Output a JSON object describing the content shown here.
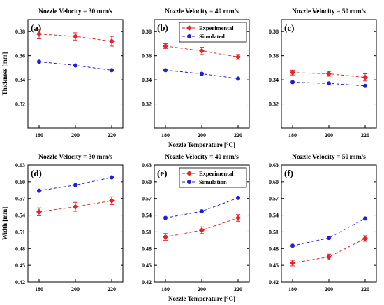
{
  "figure": {
    "row_xlabel": "Nozzle Temperature  [°C]"
  },
  "colors": {
    "experimental": "#e8222a",
    "simulated": "#1f1fd6",
    "axis": "#000000"
  },
  "chart_data": [
    {
      "type": "line",
      "panel": "(a)",
      "title": "Nozzle Velocity = 30 mm/s",
      "xlabel": "",
      "ylabel": "Thickness  [mm]",
      "x": [
        180,
        200,
        220
      ],
      "xticks": [
        "180",
        "200",
        "220"
      ],
      "ylim": [
        0.3,
        0.39
      ],
      "yticks": [
        "0.32",
        "0.34",
        "0.36",
        "0.38"
      ],
      "legend": null,
      "series": [
        {
          "key": "experimental",
          "marker": "diamond",
          "values": [
            0.378,
            0.376,
            0.372
          ],
          "errors": [
            0.004,
            0.003,
            0.004
          ]
        },
        {
          "key": "simulated",
          "marker": "circle",
          "values": [
            0.355,
            0.352,
            0.348
          ],
          "errors": null
        }
      ]
    },
    {
      "type": "line",
      "panel": "(b)",
      "title": "Nozzle Velocity = 40 mm/s",
      "xlabel": "Nozzle Temperature  [°C]",
      "ylabel": "",
      "x": [
        180,
        200,
        220
      ],
      "xticks": [
        "180",
        "200",
        "220"
      ],
      "ylim": [
        0.3,
        0.39
      ],
      "yticks": [
        "0.32",
        "0.34",
        "0.36",
        "0.38"
      ],
      "legend": "top-right",
      "series": [
        {
          "key": "experimental",
          "name": "Experimental",
          "marker": "diamond",
          "values": [
            0.368,
            0.364,
            0.359
          ],
          "errors": [
            0.002,
            0.003,
            0.002
          ]
        },
        {
          "key": "simulated",
          "name": "Simulated",
          "marker": "circle",
          "values": [
            0.348,
            0.345,
            0.341
          ],
          "errors": null
        }
      ]
    },
    {
      "type": "line",
      "panel": "(c)",
      "title": "Nozzle Velocity = 50 mm/s",
      "xlabel": "",
      "ylabel": "",
      "x": [
        180,
        200,
        220
      ],
      "xticks": [
        "180",
        "200",
        "220"
      ],
      "ylim": [
        0.3,
        0.39
      ],
      "yticks": [
        "0.32",
        "0.34",
        "0.36",
        "0.38"
      ],
      "legend": null,
      "series": [
        {
          "key": "experimental",
          "marker": "diamond",
          "values": [
            0.346,
            0.345,
            0.342
          ],
          "errors": [
            0.002,
            0.002,
            0.003
          ]
        },
        {
          "key": "simulated",
          "marker": "circle",
          "values": [
            0.338,
            0.337,
            0.335
          ],
          "errors": null
        }
      ]
    },
    {
      "type": "line",
      "panel": "(d)",
      "title": "Nozzle Velocity = 30 mm/s",
      "xlabel": "",
      "ylabel": "Width  [mm]",
      "x": [
        180,
        200,
        220
      ],
      "xticks": [
        "180",
        "200",
        "220"
      ],
      "ylim": [
        0.42,
        0.63
      ],
      "yticks": [
        "0.42",
        "0.45",
        "0.48",
        "0.51",
        "0.54",
        "0.57",
        "0.60",
        "0.63"
      ],
      "legend": null,
      "series": [
        {
          "key": "experimental",
          "marker": "diamond",
          "values": [
            0.546,
            0.555,
            0.566
          ],
          "errors": [
            0.007,
            0.008,
            0.007
          ]
        },
        {
          "key": "simulated",
          "marker": "circle",
          "values": [
            0.584,
            0.594,
            0.608
          ],
          "errors": null
        }
      ]
    },
    {
      "type": "line",
      "panel": "(e)",
      "title": "Nozzle Velocity = 40 mm/s",
      "xlabel": "Nozzle Temperature  [°C]",
      "ylabel": "",
      "x": [
        180,
        200,
        220
      ],
      "xticks": [
        "180",
        "200",
        "220"
      ],
      "ylim": [
        0.42,
        0.63
      ],
      "yticks": [
        "0.42",
        "0.45",
        "0.48",
        "0.51",
        "0.54",
        "0.57",
        "0.60",
        "0.63"
      ],
      "legend": "top-right",
      "series": [
        {
          "key": "experimental",
          "name": "Experimental",
          "marker": "diamond",
          "values": [
            0.501,
            0.513,
            0.535
          ],
          "errors": [
            0.006,
            0.006,
            0.006
          ]
        },
        {
          "key": "simulated",
          "name": "Simulation",
          "marker": "circle",
          "values": [
            0.535,
            0.547,
            0.571
          ],
          "errors": null
        }
      ]
    },
    {
      "type": "line",
      "panel": "(f)",
      "title": "Nozzle Velocity = 50 mm/s",
      "xlabel": "",
      "ylabel": "",
      "x": [
        180,
        200,
        220
      ],
      "xticks": [
        "180",
        "200",
        "220"
      ],
      "ylim": [
        0.42,
        0.63
      ],
      "yticks": [
        "0.42",
        "0.45",
        "0.48",
        "0.51",
        "0.54",
        "0.57",
        "0.60",
        "0.63"
      ],
      "legend": null,
      "series": [
        {
          "key": "experimental",
          "marker": "diamond",
          "values": [
            0.454,
            0.465,
            0.498
          ],
          "errors": [
            0.005,
            0.005,
            0.005
          ]
        },
        {
          "key": "simulated",
          "marker": "circle",
          "values": [
            0.485,
            0.499,
            0.534
          ],
          "errors": null
        }
      ]
    }
  ]
}
